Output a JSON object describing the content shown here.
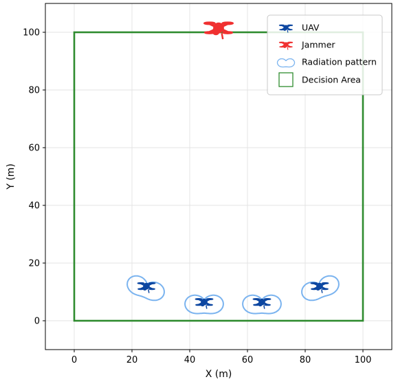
{
  "chart_data": {
    "type": "scatter",
    "title": "",
    "xlabel": "X (m)",
    "ylabel": "Y (m)",
    "xlim": [
      -10,
      110
    ],
    "ylim": [
      -10,
      110
    ],
    "xticks": [
      0,
      20,
      40,
      60,
      80,
      100
    ],
    "yticks": [
      0,
      20,
      40,
      60,
      80,
      100
    ],
    "grid": true,
    "legend_position": "top-right",
    "decision_area": {
      "x": [
        0,
        100
      ],
      "y": [
        0,
        100
      ]
    },
    "series": [
      {
        "name": "UAV",
        "color": "#0d47a1",
        "marker": "quadcopter-icon",
        "points": [
          {
            "x": 25,
            "y": 12
          },
          {
            "x": 45,
            "y": 6.5
          },
          {
            "x": 65,
            "y": 6.5
          },
          {
            "x": 85,
            "y": 12
          }
        ]
      },
      {
        "name": "Jammer",
        "color": "#f03030",
        "marker": "quadcopter-icon",
        "points": [
          {
            "x": 50,
            "y": 101.5
          }
        ]
      },
      {
        "name": "Radiation pattern",
        "color": "#7ab3ef",
        "marker": "heart-shaped-lobe",
        "patterns": [
          {
            "x": 25,
            "y": 12,
            "direction_deg": 20
          },
          {
            "x": 45,
            "y": 6.5,
            "direction_deg": 0
          },
          {
            "x": 65,
            "y": 6.5,
            "direction_deg": 0
          },
          {
            "x": 85,
            "y": 12,
            "direction_deg": -20
          }
        ]
      },
      {
        "name": "Decision Area",
        "color": "#2e8b2e",
        "marker": "square-outline"
      }
    ]
  }
}
